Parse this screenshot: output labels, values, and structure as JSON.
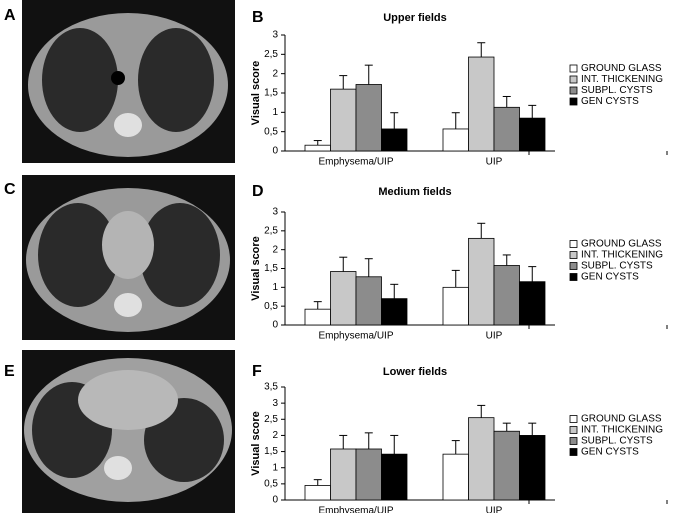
{
  "panels": [
    "A",
    "C",
    "E"
  ],
  "chart_data": [
    {
      "type": "bar",
      "panel": "B",
      "title": "Upper fields",
      "ylabel": "Visual score",
      "categories": [
        "Emphysema/UIP",
        "UIP"
      ],
      "ylim": [
        0,
        3
      ],
      "yticks": [
        0,
        {
          "value": 0.5,
          "label": "0,5"
        },
        1,
        {
          "value": 1.5,
          "label": "1,5"
        },
        2,
        {
          "value": 2.5,
          "label": "2,5"
        },
        3
      ],
      "series": [
        {
          "name": "GROUND GLASS",
          "color": "#ffffff",
          "values": [
            0.15,
            0.57
          ],
          "errors": [
            0.12,
            0.42
          ]
        },
        {
          "name": "INT. THICKENING",
          "color": "#c8c8c8",
          "values": [
            1.6,
            2.43
          ],
          "errors": [
            0.35,
            0.37
          ]
        },
        {
          "name": "SUBPL. CYSTS",
          "color": "#8c8c8c",
          "values": [
            1.72,
            1.13
          ],
          "errors": [
            0.5,
            0.28
          ]
        },
        {
          "name": "GEN CYSTS",
          "color": "#000000",
          "values": [
            0.57,
            0.85
          ],
          "errors": [
            0.42,
            0.33
          ]
        }
      ]
    },
    {
      "type": "bar",
      "panel": "D",
      "title": "Medium fields",
      "ylabel": "Visual score",
      "categories": [
        "Emphysema/UIP",
        "UIP"
      ],
      "ylim": [
        0,
        3
      ],
      "yticks": [
        0,
        {
          "value": 0.5,
          "label": "0,5"
        },
        1,
        {
          "value": 1.5,
          "label": "1,5"
        },
        2,
        {
          "value": 2.5,
          "label": "2,5"
        },
        3
      ],
      "series": [
        {
          "name": "GROUND GLASS",
          "color": "#ffffff",
          "values": [
            0.42,
            1.0
          ],
          "errors": [
            0.2,
            0.45
          ]
        },
        {
          "name": "INT. THICKENING",
          "color": "#c8c8c8",
          "values": [
            1.42,
            2.3
          ],
          "errors": [
            0.38,
            0.4
          ]
        },
        {
          "name": "SUBPL. CYSTS",
          "color": "#8c8c8c",
          "values": [
            1.28,
            1.58
          ],
          "errors": [
            0.48,
            0.28
          ]
        },
        {
          "name": "GEN CYSTS",
          "color": "#000000",
          "values": [
            0.7,
            1.15
          ],
          "errors": [
            0.38,
            0.4
          ]
        }
      ]
    },
    {
      "type": "bar",
      "panel": "F",
      "title": "Lower fields",
      "ylabel": "Visual score",
      "categories": [
        "Emphysema/UIP",
        "UIP"
      ],
      "ylim": [
        0,
        3.5
      ],
      "yticks": [
        0,
        {
          "value": 0.5,
          "label": "0,5"
        },
        1,
        {
          "value": 1.5,
          "label": "1,5"
        },
        2,
        {
          "value": 2.5,
          "label": "2,5"
        },
        3,
        {
          "value": 3.5,
          "label": "3,5"
        }
      ],
      "series": [
        {
          "name": "GROUND GLASS",
          "color": "#ffffff",
          "values": [
            0.45,
            1.42
          ],
          "errors": [
            0.18,
            0.42
          ]
        },
        {
          "name": "INT. THICKENING",
          "color": "#c8c8c8",
          "values": [
            1.58,
            2.55
          ],
          "errors": [
            0.42,
            0.38
          ]
        },
        {
          "name": "SUBPL. CYSTS",
          "color": "#8c8c8c",
          "values": [
            1.58,
            2.13
          ],
          "errors": [
            0.5,
            0.25
          ]
        },
        {
          "name": "GEN CYSTS",
          "color": "#000000",
          "values": [
            1.42,
            2.0
          ],
          "errors": [
            0.58,
            0.38
          ]
        }
      ]
    }
  ]
}
